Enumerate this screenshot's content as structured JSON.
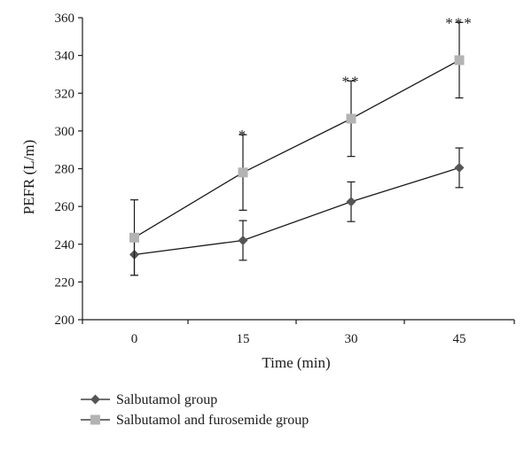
{
  "chart_data": {
    "type": "line",
    "title": "",
    "xlabel": "Time (min)",
    "ylabel": "PEFR (L/m)",
    "categories": [
      "0",
      "15",
      "30",
      "45"
    ],
    "ylim": [
      200,
      360
    ],
    "yticks": [
      200,
      220,
      240,
      260,
      280,
      300,
      320,
      340,
      360
    ],
    "grid": false,
    "legend_position": "bottom-left",
    "series": [
      {
        "name": "Salbutamol group",
        "marker": "diamond",
        "color": "#555555",
        "values": [
          234.5,
          242,
          262.5,
          280.5
        ],
        "error": [
          11,
          10.5,
          10.5,
          10.5
        ]
      },
      {
        "name": "Salbutamol and furosemide group",
        "marker": "square",
        "color": "#b3b3b3",
        "values": [
          243.5,
          278,
          306.5,
          337.5
        ],
        "error": [
          20,
          20,
          20,
          20
        ]
      }
    ],
    "annotations": [
      "",
      "*",
      "**",
      "***"
    ]
  }
}
